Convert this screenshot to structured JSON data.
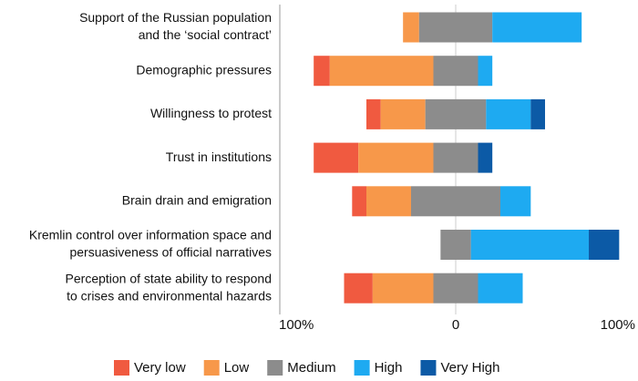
{
  "chart_data": {
    "type": "diverging-bar",
    "categories": [
      [
        "Support of the Russian population",
        "and the ‘social contract’"
      ],
      [
        "Demographic pressures"
      ],
      [
        "Willingness to protest"
      ],
      [
        "Trust in institutions"
      ],
      [
        "Brain drain and emigration"
      ],
      [
        "Kremlin control over information space and",
        "persuasiveness of official narratives"
      ],
      [
        "Perception of state ability to respond",
        "to crises and environmental hazards"
      ]
    ],
    "series": [
      {
        "name": "Very low",
        "color": "#f05a40",
        "values": [
          0,
          9,
          8,
          25,
          8,
          0,
          16
        ]
      },
      {
        "name": "Low",
        "color": "#f7984a",
        "values": [
          9,
          58,
          25,
          42,
          25,
          0,
          34
        ]
      },
      {
        "name": "Medium",
        "color": "#8c8c8c",
        "values": [
          41,
          25,
          34,
          25,
          50,
          17,
          25
        ]
      },
      {
        "name": "High",
        "color": "#1eaaf1",
        "values": [
          50,
          8,
          25,
          0,
          17,
          66,
          25
        ]
      },
      {
        "name": "Very High",
        "color": "#0c5aa6",
        "values": [
          0,
          0,
          8,
          8,
          0,
          17,
          0
        ]
      }
    ],
    "xlim": [
      -100,
      100
    ],
    "xticks": [
      {
        "value": -100,
        "label": "100%"
      },
      0,
      {
        "value": 100,
        "label": "100%"
      }
    ]
  }
}
